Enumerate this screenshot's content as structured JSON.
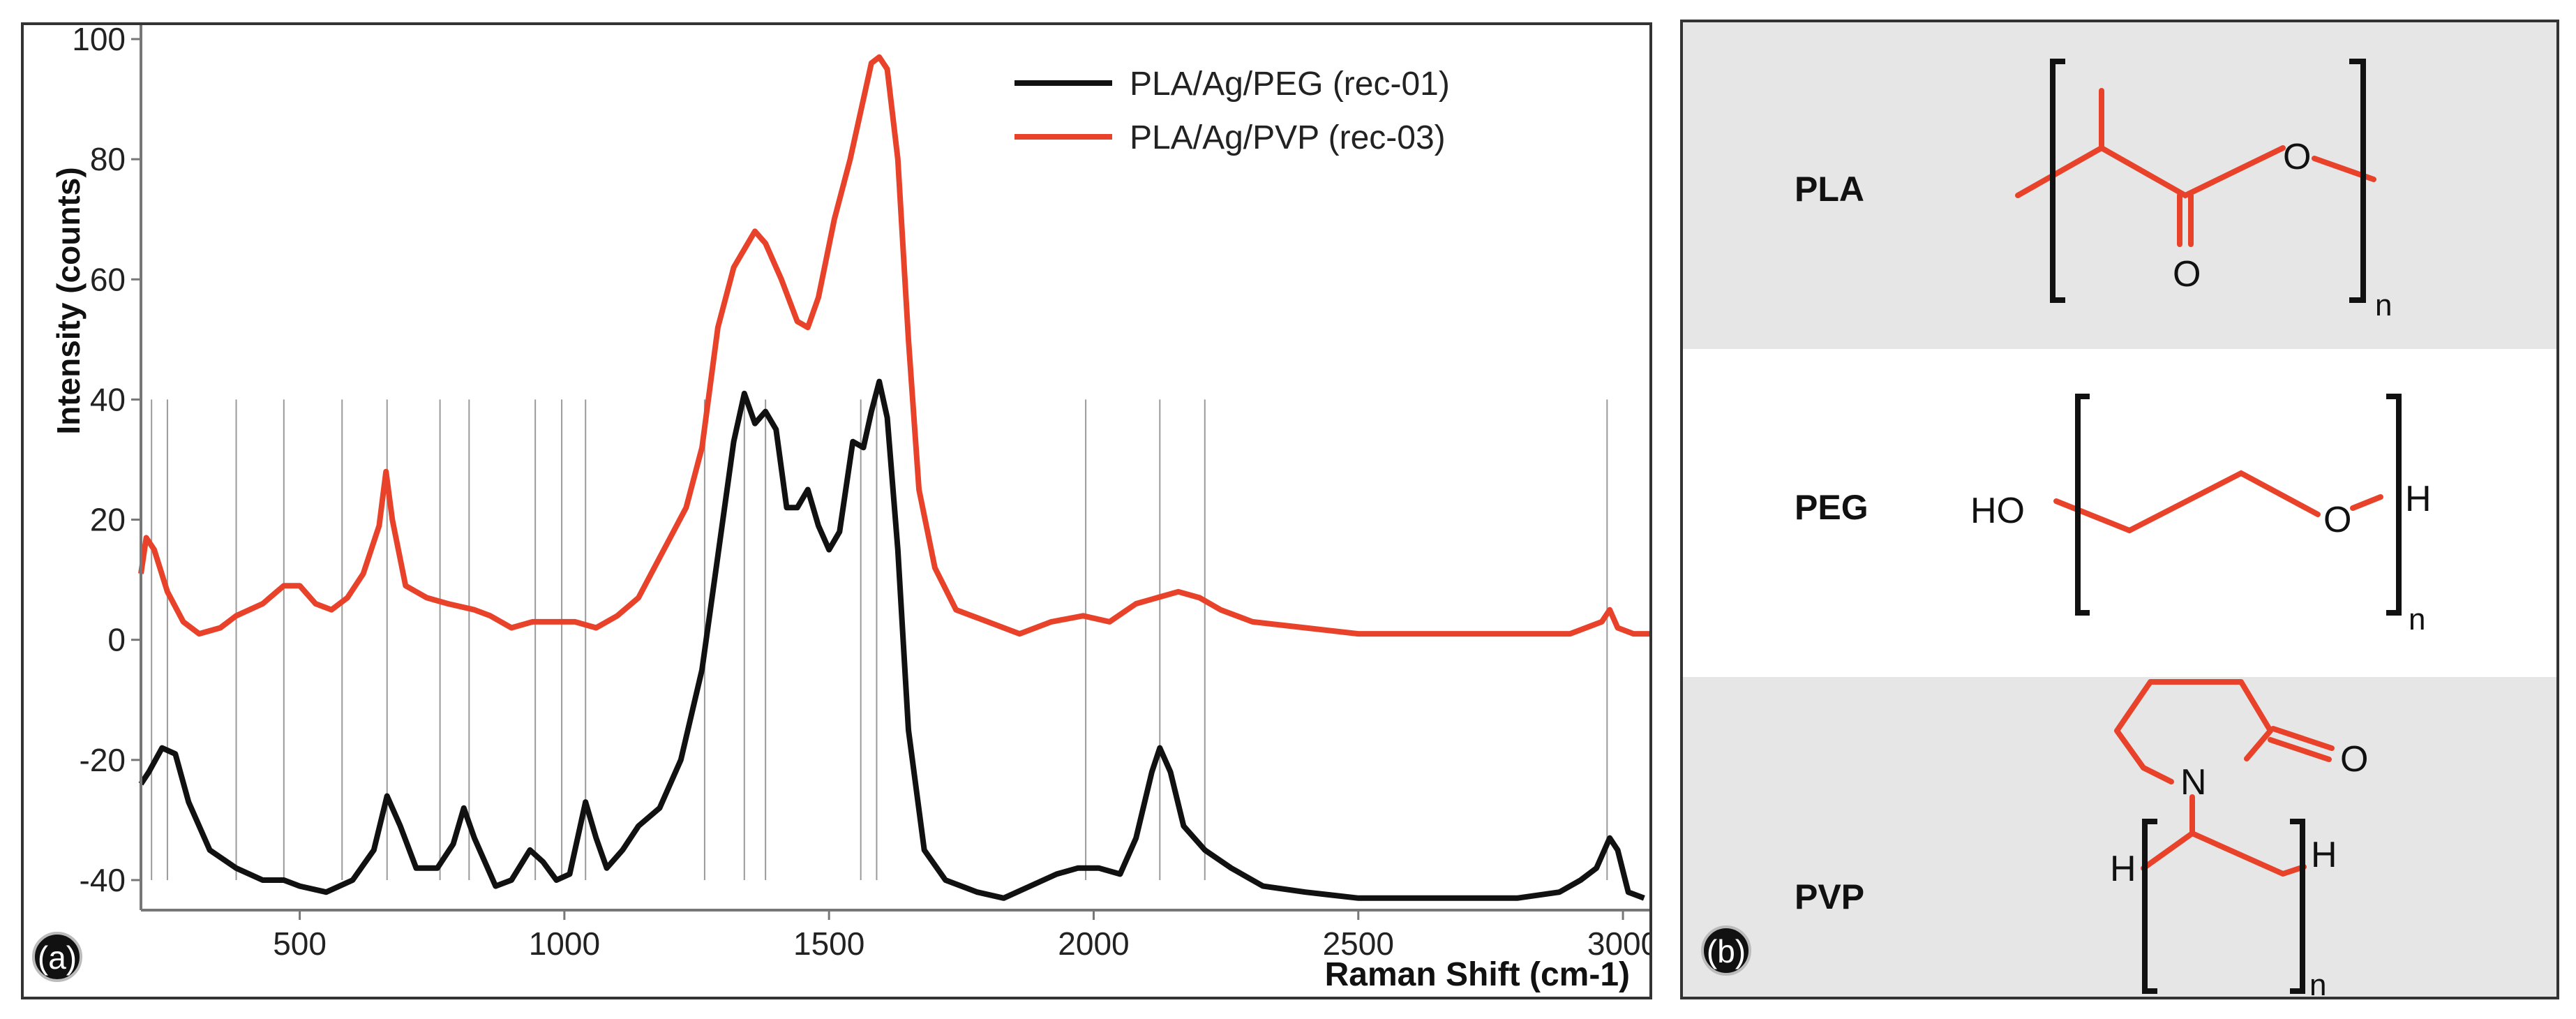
{
  "panel_labels": {
    "a": "(a)",
    "b": "(b)"
  },
  "colors": {
    "peg_series": "#111111",
    "pvp_series": "#e8432a",
    "structure_red": "#e8432a",
    "band_gray": "#e6e6e6"
  },
  "chart_data": {
    "type": "line",
    "title": "",
    "xlabel": "Raman Shift (cm-1)",
    "ylabel": "Intensity (counts)",
    "xlim": [
      200,
      3050
    ],
    "ylim": [
      -45,
      100
    ],
    "xticks": [
      500,
      1000,
      1500,
      2000,
      2500,
      3000
    ],
    "yticks": [
      -40,
      -20,
      0,
      20,
      40,
      60,
      80,
      100
    ],
    "legend_position": "top-right",
    "series": [
      {
        "name": "PLA/Ag/PEG (rec-01)",
        "color": "#111111",
        "points": [
          [
            200,
            -24
          ],
          [
            215,
            -22
          ],
          [
            240,
            -18
          ],
          [
            265,
            -19
          ],
          [
            290,
            -27
          ],
          [
            330,
            -35
          ],
          [
            380,
            -38
          ],
          [
            430,
            -40
          ],
          [
            470,
            -40
          ],
          [
            500,
            -41
          ],
          [
            550,
            -42
          ],
          [
            600,
            -40
          ],
          [
            640,
            -35
          ],
          [
            665,
            -26
          ],
          [
            690,
            -31
          ],
          [
            720,
            -38
          ],
          [
            760,
            -38
          ],
          [
            790,
            -34
          ],
          [
            810,
            -28
          ],
          [
            830,
            -33
          ],
          [
            870,
            -41
          ],
          [
            900,
            -40
          ],
          [
            935,
            -35
          ],
          [
            960,
            -37
          ],
          [
            985,
            -40
          ],
          [
            1010,
            -39
          ],
          [
            1040,
            -27
          ],
          [
            1060,
            -33
          ],
          [
            1080,
            -38
          ],
          [
            1110,
            -35
          ],
          [
            1140,
            -31
          ],
          [
            1180,
            -28
          ],
          [
            1220,
            -20
          ],
          [
            1260,
            -5
          ],
          [
            1290,
            14
          ],
          [
            1320,
            33
          ],
          [
            1340,
            41
          ],
          [
            1360,
            36
          ],
          [
            1380,
            38
          ],
          [
            1400,
            35
          ],
          [
            1420,
            22
          ],
          [
            1440,
            22
          ],
          [
            1460,
            25
          ],
          [
            1480,
            19
          ],
          [
            1500,
            15
          ],
          [
            1520,
            18
          ],
          [
            1545,
            33
          ],
          [
            1565,
            32
          ],
          [
            1580,
            38
          ],
          [
            1595,
            43
          ],
          [
            1610,
            37
          ],
          [
            1630,
            15
          ],
          [
            1650,
            -15
          ],
          [
            1680,
            -35
          ],
          [
            1720,
            -40
          ],
          [
            1780,
            -42
          ],
          [
            1830,
            -43
          ],
          [
            1880,
            -41
          ],
          [
            1930,
            -39
          ],
          [
            1970,
            -38
          ],
          [
            2010,
            -38
          ],
          [
            2050,
            -39
          ],
          [
            2080,
            -33
          ],
          [
            2110,
            -22
          ],
          [
            2125,
            -18
          ],
          [
            2145,
            -22
          ],
          [
            2170,
            -31
          ],
          [
            2210,
            -35
          ],
          [
            2260,
            -38
          ],
          [
            2320,
            -41
          ],
          [
            2400,
            -42
          ],
          [
            2500,
            -43
          ],
          [
            2600,
            -43
          ],
          [
            2700,
            -43
          ],
          [
            2800,
            -43
          ],
          [
            2880,
            -42
          ],
          [
            2920,
            -40
          ],
          [
            2950,
            -38
          ],
          [
            2975,
            -33
          ],
          [
            2990,
            -35
          ],
          [
            3010,
            -42
          ],
          [
            3040,
            -43
          ]
        ]
      },
      {
        "name": "PLA/Ag/PVP (rec-03)",
        "color": "#e8432a",
        "points": [
          [
            200,
            11
          ],
          [
            210,
            17
          ],
          [
            225,
            15
          ],
          [
            250,
            8
          ],
          [
            280,
            3
          ],
          [
            310,
            1
          ],
          [
            350,
            2
          ],
          [
            380,
            4
          ],
          [
            430,
            6
          ],
          [
            470,
            9
          ],
          [
            500,
            9
          ],
          [
            530,
            6
          ],
          [
            560,
            5
          ],
          [
            590,
            7
          ],
          [
            620,
            11
          ],
          [
            650,
            19
          ],
          [
            663,
            28
          ],
          [
            675,
            20
          ],
          [
            700,
            9
          ],
          [
            740,
            7
          ],
          [
            780,
            6
          ],
          [
            830,
            5
          ],
          [
            860,
            4
          ],
          [
            900,
            2
          ],
          [
            940,
            3
          ],
          [
            980,
            3
          ],
          [
            1020,
            3
          ],
          [
            1060,
            2
          ],
          [
            1100,
            4
          ],
          [
            1140,
            7
          ],
          [
            1170,
            12
          ],
          [
            1200,
            17
          ],
          [
            1230,
            22
          ],
          [
            1260,
            32
          ],
          [
            1290,
            52
          ],
          [
            1320,
            62
          ],
          [
            1340,
            65
          ],
          [
            1360,
            68
          ],
          [
            1380,
            66
          ],
          [
            1410,
            60
          ],
          [
            1440,
            53
          ],
          [
            1460,
            52
          ],
          [
            1480,
            57
          ],
          [
            1510,
            70
          ],
          [
            1540,
            80
          ],
          [
            1560,
            88
          ],
          [
            1580,
            96
          ],
          [
            1595,
            97
          ],
          [
            1610,
            95
          ],
          [
            1630,
            80
          ],
          [
            1650,
            50
          ],
          [
            1670,
            25
          ],
          [
            1700,
            12
          ],
          [
            1740,
            5
          ],
          [
            1800,
            3
          ],
          [
            1860,
            1
          ],
          [
            1920,
            3
          ],
          [
            1980,
            4
          ],
          [
            2030,
            3
          ],
          [
            2080,
            6
          ],
          [
            2120,
            7
          ],
          [
            2160,
            8
          ],
          [
            2200,
            7
          ],
          [
            2240,
            5
          ],
          [
            2300,
            3
          ],
          [
            2400,
            2
          ],
          [
            2500,
            1
          ],
          [
            2600,
            1
          ],
          [
            2700,
            1
          ],
          [
            2800,
            1
          ],
          [
            2900,
            1
          ],
          [
            2960,
            3
          ],
          [
            2975,
            5
          ],
          [
            2990,
            2
          ],
          [
            3020,
            1
          ],
          [
            3050,
            1
          ]
        ]
      }
    ],
    "marker_lines": [
      220,
      250,
      380,
      470,
      580,
      665,
      765,
      820,
      945,
      995,
      1040,
      1265,
      1340,
      1380,
      1560,
      1590,
      1985,
      2125,
      2210,
      2970
    ]
  },
  "structures": {
    "pla": {
      "name": "PLA",
      "atoms": {
        "o_ring": "O",
        "o_carbonyl": "O"
      },
      "subscript": "n"
    },
    "peg": {
      "name": "PEG",
      "atoms": {
        "left": "HO",
        "right_o": "O",
        "h": "H"
      },
      "subscript": "n"
    },
    "pvp": {
      "name": "PVP",
      "atoms": {
        "n": "N",
        "o": "O",
        "h_left": "H",
        "h_right": "H"
      },
      "subscript": "n"
    }
  }
}
